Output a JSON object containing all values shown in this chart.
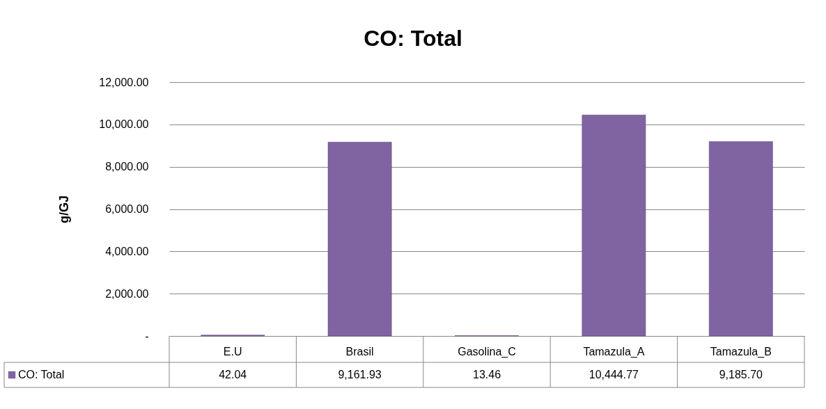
{
  "chart_data": {
    "type": "bar",
    "title": "CO: Total",
    "ylabel": "g/GJ",
    "categories": [
      "E.U",
      "Brasil",
      "Gasolina_C",
      "Tamazula_A",
      "Tamazula_B"
    ],
    "series": [
      {
        "name": "CO: Total",
        "color": "#8064a2",
        "values": [
          42.04,
          9161.93,
          13.46,
          10444.77,
          9185.7
        ],
        "value_labels": [
          "42.04",
          "9,161.93",
          "13.46",
          "10,444.77",
          "9,185.70"
        ]
      }
    ],
    "ylim": [
      0,
      12000
    ],
    "yticks": [
      {
        "value": 0,
        "label": "-"
      },
      {
        "value": 2000,
        "label": "2,000.00"
      },
      {
        "value": 4000,
        "label": "4,000.00"
      },
      {
        "value": 6000,
        "label": "6,000.00"
      },
      {
        "value": 8000,
        "label": "8,000.00"
      },
      {
        "value": 10000,
        "label": "10,000.00"
      },
      {
        "value": 12000,
        "label": "12,000.00"
      }
    ],
    "grid": "y",
    "legend": "bottom"
  }
}
